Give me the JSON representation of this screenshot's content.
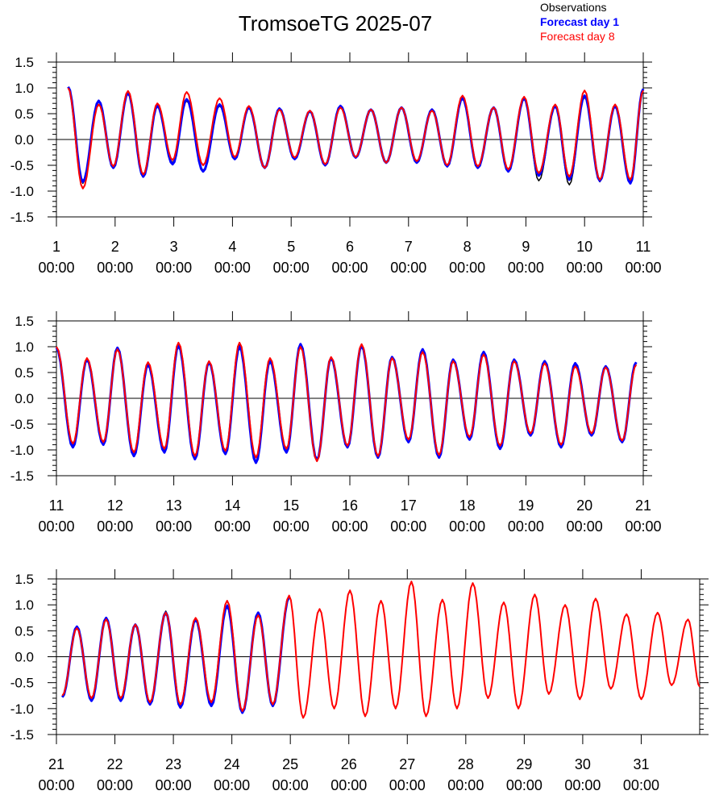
{
  "chart_data": {
    "type": "line",
    "title": "TromsoeTG 2025-07",
    "legend": [
      "Observations",
      "Forecast day 1",
      "Forecast day 8"
    ],
    "colors": {
      "Observations": "#000000",
      "Forecast day 1": "#0000ff",
      "Forecast day 8": "#ff0000"
    },
    "legend_position": "top-right",
    "panels": [
      {
        "x_range": [
          1,
          11
        ],
        "ylim": [
          -1.5,
          1.5
        ],
        "yticks": [
          "1.5",
          "1.0",
          "0.5",
          "0.0",
          "-0.5",
          "-1.0",
          "-1.5"
        ],
        "xtick_days": [
          "1",
          "2",
          "3",
          "4",
          "5",
          "6",
          "7",
          "8",
          "9",
          "10",
          "11"
        ],
        "xtick_times": [
          "00:00",
          "00:00",
          "00:00",
          "00:00",
          "00:00",
          "00:00",
          "00:00",
          "00:00",
          "00:00",
          "00:00",
          "00:00"
        ],
        "peaks_x": [
          1.2,
          1.72,
          2.22,
          2.72,
          3.22,
          3.78,
          4.28,
          4.8,
          5.32,
          5.84,
          6.36,
          6.88,
          7.4,
          7.92,
          8.45,
          8.97,
          9.5,
          10.0,
          10.52,
          11.0
        ],
        "peaks": {
          "Observations": [
            1.0,
            0.75,
            0.9,
            0.65,
            0.75,
            0.65,
            0.62,
            0.6,
            0.55,
            0.65,
            0.58,
            0.62,
            0.58,
            0.8,
            0.62,
            0.8,
            0.65,
            0.82,
            0.65,
            0.95
          ],
          "Forecast day 1": [
            1.02,
            0.75,
            0.9,
            0.65,
            0.78,
            0.68,
            0.62,
            0.6,
            0.55,
            0.65,
            0.58,
            0.62,
            0.58,
            0.8,
            0.62,
            0.8,
            0.65,
            0.85,
            0.65,
            0.98
          ],
          "Forecast day 8": [
            1.0,
            0.68,
            0.94,
            0.7,
            0.92,
            0.8,
            0.65,
            0.58,
            0.56,
            0.62,
            0.58,
            0.62,
            0.56,
            0.85,
            0.62,
            0.83,
            0.68,
            0.95,
            0.68,
            0.95
          ]
        },
        "troughs_x": [
          1.45,
          1.97,
          2.48,
          2.98,
          3.5,
          4.04,
          4.55,
          5.06,
          5.58,
          6.1,
          6.62,
          7.14,
          7.66,
          8.18,
          8.7,
          9.22,
          9.74,
          10.26,
          10.78
        ],
        "troughs": {
          "Observations": [
            -0.85,
            -0.55,
            -0.7,
            -0.45,
            -0.6,
            -0.35,
            -0.55,
            -0.38,
            -0.48,
            -0.35,
            -0.45,
            -0.45,
            -0.5,
            -0.55,
            -0.6,
            -0.8,
            -0.88,
            -0.82,
            -0.82
          ],
          "Forecast day 1": [
            -0.82,
            -0.55,
            -0.72,
            -0.48,
            -0.62,
            -0.38,
            -0.55,
            -0.38,
            -0.5,
            -0.35,
            -0.45,
            -0.45,
            -0.52,
            -0.55,
            -0.62,
            -0.7,
            -0.78,
            -0.8,
            -0.85
          ],
          "Forecast day 8": [
            -0.95,
            -0.52,
            -0.68,
            -0.4,
            -0.5,
            -0.34,
            -0.55,
            -0.35,
            -0.48,
            -0.34,
            -0.45,
            -0.42,
            -0.5,
            -0.52,
            -0.58,
            -0.65,
            -0.72,
            -0.78,
            -0.78
          ]
        }
      },
      {
        "x_range": [
          11,
          21
        ],
        "ylim": [
          -1.5,
          1.5
        ],
        "yticks": [
          "1.5",
          "1.0",
          "0.5",
          "0.0",
          "-0.5",
          "-1.0",
          "-1.5"
        ],
        "xtick_days": [
          "11",
          "12",
          "13",
          "14",
          "15",
          "16",
          "17",
          "18",
          "19",
          "20",
          "21"
        ],
        "xtick_times": [
          "00:00",
          "00:00",
          "00:00",
          "00:00",
          "00:00",
          "00:00",
          "00:00",
          "00:00",
          "00:00",
          "00:00",
          "00:00"
        ],
        "peaks_x": [
          11.0,
          11.52,
          12.04,
          12.56,
          13.08,
          13.6,
          14.12,
          14.64,
          15.16,
          15.68,
          16.2,
          16.72,
          17.24,
          17.76,
          18.28,
          18.8,
          19.32,
          19.84,
          20.36,
          20.88
        ],
        "peaks": {
          "Observations": [
            0.98,
            0.75,
            0.98,
            0.65,
            1.05,
            0.7,
            1.05,
            0.72,
            1.05,
            0.78,
            1.05,
            0.78,
            0.95,
            0.75,
            0.88,
            0.75,
            0.72,
            0.65,
            0.62,
            0.68
          ],
          "Forecast day 1": [
            0.98,
            0.75,
            0.98,
            0.65,
            1.02,
            0.7,
            1.0,
            0.72,
            1.05,
            0.78,
            1.02,
            0.8,
            0.95,
            0.75,
            0.9,
            0.75,
            0.72,
            0.68,
            0.62,
            0.7
          ],
          "Forecast day 8": [
            1.0,
            0.78,
            0.95,
            0.7,
            1.08,
            0.72,
            1.08,
            0.78,
            1.0,
            0.8,
            1.05,
            0.78,
            0.9,
            0.72,
            0.85,
            0.72,
            0.68,
            0.62,
            0.6,
            0.65
          ]
        },
        "troughs_x": [
          11.28,
          11.8,
          12.32,
          12.84,
          13.36,
          13.88,
          14.4,
          14.92,
          15.44,
          15.96,
          16.48,
          17.0,
          17.52,
          18.04,
          18.56,
          19.08,
          19.6,
          20.12,
          20.64
        ],
        "troughs": {
          "Observations": [
            -0.92,
            -0.88,
            -1.1,
            -1.02,
            -1.15,
            -1.05,
            -1.22,
            -1.02,
            -1.18,
            -0.95,
            -1.15,
            -0.82,
            -1.12,
            -0.78,
            -0.95,
            -0.7,
            -0.95,
            -0.7,
            -0.85
          ],
          "Forecast day 1": [
            -0.95,
            -0.9,
            -1.12,
            -1.05,
            -1.18,
            -1.08,
            -1.25,
            -1.05,
            -1.2,
            -0.95,
            -1.15,
            -0.85,
            -1.15,
            -0.8,
            -0.98,
            -0.72,
            -0.95,
            -0.72,
            -0.85
          ],
          "Forecast day 8": [
            -0.88,
            -0.85,
            -1.05,
            -0.98,
            -1.12,
            -1.02,
            -1.15,
            -0.98,
            -1.22,
            -0.92,
            -1.12,
            -0.8,
            -1.1,
            -0.75,
            -0.92,
            -0.68,
            -0.9,
            -0.68,
            -0.82
          ]
        }
      },
      {
        "x_range": [
          21,
          32
        ],
        "ylim": [
          -1.5,
          1.5
        ],
        "yticks": [
          "1.5",
          "1.0",
          "0.5",
          "0.0",
          "-0.5",
          "-1.0",
          "-1.5"
        ],
        "xtick_days": [
          "21",
          "22",
          "23",
          "24",
          "25",
          "26",
          "27",
          "28",
          "29",
          "30",
          "31"
        ],
        "xtick_times": [
          "00:00",
          "00:00",
          "00:00",
          "00:00",
          "00:00",
          "00:00",
          "00:00",
          "00:00",
          "00:00",
          "00:00",
          "00:00"
        ],
        "peaks_x": [
          21.35,
          21.85,
          22.35,
          22.87,
          23.38,
          23.92,
          24.45,
          24.98,
          25.5,
          26.02,
          26.55,
          27.07,
          27.6,
          28.12,
          28.65,
          29.18,
          29.7,
          30.22,
          30.75,
          31.28,
          31.8
        ],
        "peaks": {
          "Observations": [
            0.58,
            0.75,
            0.62,
            0.88,
            0.72,
            1.0,
            0.85,
            1.15
          ],
          "Forecast day 1": [
            0.58,
            0.75,
            0.62,
            0.85,
            0.72,
            0.98,
            0.85,
            1.15
          ],
          "Forecast day 8": [
            0.55,
            0.72,
            0.62,
            0.85,
            0.75,
            1.08,
            0.8,
            1.18,
            0.92,
            1.28,
            1.08,
            1.45,
            1.1,
            1.42,
            1.05,
            1.2,
            1.0,
            1.12,
            0.82,
            0.85,
            0.72
          ]
        },
        "troughs_x": [
          21.1,
          21.6,
          22.1,
          22.6,
          23.12,
          23.65,
          24.18,
          24.7,
          25.22,
          25.75,
          26.28,
          26.8,
          27.32,
          27.85,
          28.38,
          28.9,
          29.42,
          29.95,
          30.48,
          31.0,
          31.52,
          32.0
        ],
        "troughs": {
          "Observations": [
            -0.78,
            -0.82,
            -0.82,
            -0.9,
            -0.98,
            -0.92,
            -1.05,
            -0.95
          ],
          "Forecast day 1": [
            -0.78,
            -0.85,
            -0.85,
            -0.92,
            -0.98,
            -0.95,
            -1.08,
            -0.95
          ],
          "Forecast day 8": [
            -0.75,
            -0.8,
            -0.8,
            -0.88,
            -0.92,
            -0.88,
            -1.05,
            -0.92,
            -1.18,
            -1.0,
            -1.15,
            -1.0,
            -1.15,
            -1.0,
            -0.8,
            -1.0,
            -0.72,
            -0.82,
            -0.62,
            -0.82,
            -0.55,
            -0.58
          ]
        },
        "observed_until_x": 25.0
      }
    ]
  }
}
